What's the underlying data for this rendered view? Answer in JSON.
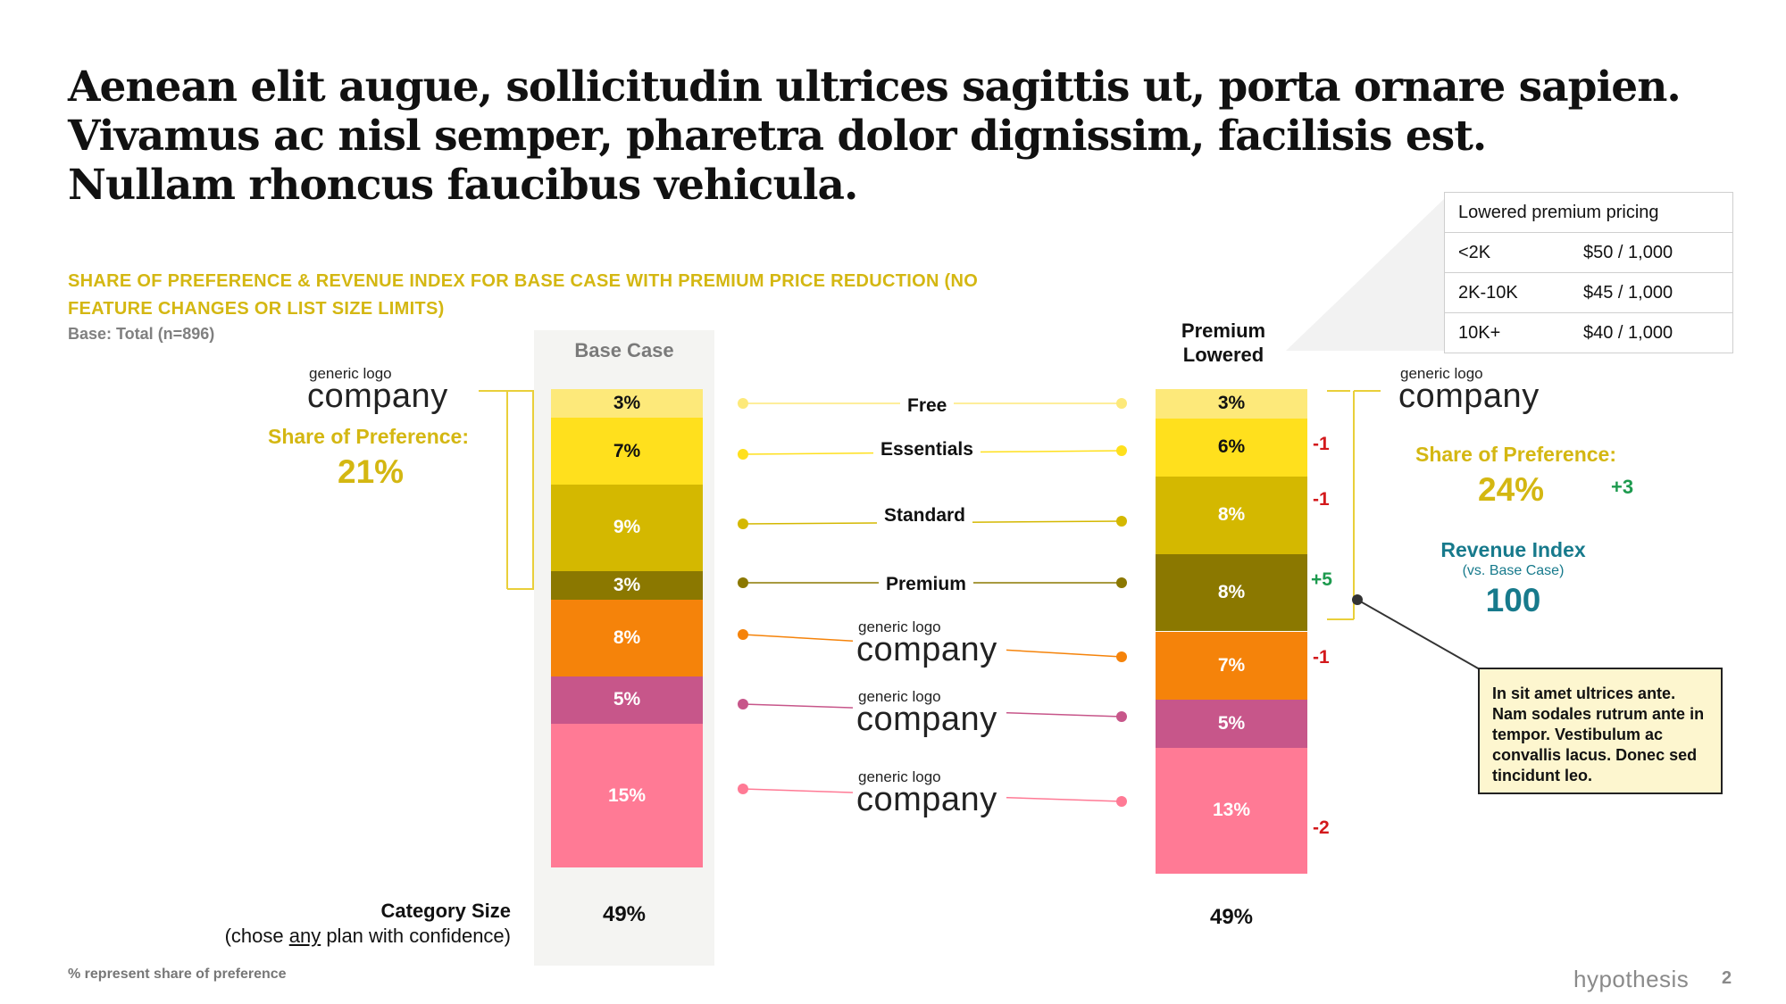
{
  "headline": {
    "line1": "Aenean elit augue, sollicitudin ultrices sagittis ut, porta ornare sapien.",
    "line2": "Vivamus ac nisl semper, pharetra dolor dignissim, facilisis est.",
    "line3": "Nullam rhoncus faucibus vehicula."
  },
  "subtitle": {
    "line1": "SHARE OF PREFERENCE & REVENUE INDEX FOR BASE CASE WITH PREMIUM PRICE REDUCTION (NO",
    "line2": "FEATURE CHANGES OR LIST SIZE LIMITS)"
  },
  "base_note": "Base: Total (n=896)",
  "pricing_table": {
    "title": "Lowered premium pricing",
    "rows": [
      {
        "tier": "<2K",
        "price": "$50 / 1,000"
      },
      {
        "tier": "2K-10K",
        "price": "$45 / 1,000"
      },
      {
        "tier": "10K+",
        "price": "$40 / 1,000"
      }
    ]
  },
  "logo": {
    "small": "generic logo",
    "big": "company"
  },
  "left_panel": {
    "sop_label": "Share of Preference:",
    "sop_value": "21%"
  },
  "right_panel": {
    "sop_label": "Share of Preference:",
    "sop_value": "24%",
    "sop_delta": "+3",
    "revenue_label": "Revenue Index",
    "revenue_sub": "(vs. Base Case)",
    "revenue_value": "100"
  },
  "category": {
    "label": "Category Size",
    "sub_pre": "(chose ",
    "sub_em": "any",
    "sub_post": " plan with confidence)"
  },
  "callout": "In sit amet ultrices ante. Nam sodales rutrum ante in tempor. Vestibulum ac convallis lacus. Donec sed tincidunt leo.",
  "footer": {
    "note": "% represent share of preference",
    "brand": "hypothesis",
    "page": "2"
  },
  "colors": {
    "free": "#fde97a",
    "essentials": "#ffe01d",
    "standard": "#d4b800",
    "premium": "#8b7800",
    "company1": "#f5830a",
    "company2": "#c7568a",
    "company3": "#ff7a95",
    "accent_gold": "#d4b712",
    "accent_teal": "#177a8c"
  },
  "chart_data": {
    "type": "bar",
    "title": "SHARE OF PREFERENCE & REVENUE INDEX FOR BASE CASE WITH PREMIUM PRICE REDUCTION (NO FEATURE CHANGES OR LIST SIZE LIMITS)",
    "categories": [
      "Free",
      "Essentials",
      "Standard",
      "Premium",
      "company (1)",
      "company (2)",
      "company (3)"
    ],
    "series": [
      {
        "name": "Base Case",
        "values": [
          3,
          7,
          9,
          3,
          8,
          5,
          15
        ],
        "labels": [
          "3%",
          "7%",
          "9%",
          "3%",
          "8%",
          "5%",
          "15%"
        ],
        "total": "49%"
      },
      {
        "name": "Premium Lowered",
        "values": [
          3,
          6,
          8,
          8,
          7,
          5,
          13
        ],
        "labels": [
          "3%",
          "6%",
          "8%",
          "8%",
          "7%",
          "5%",
          "13%"
        ],
        "total": "49%",
        "deltas": [
          "",
          "-1",
          "-1",
          "+5",
          "-1",
          "",
          "-2"
        ]
      }
    ],
    "series_headers": {
      "base": "Base Case",
      "premium_line1": "Premium",
      "premium_line2": "Lowered"
    },
    "stacked": true,
    "unit": "%"
  }
}
